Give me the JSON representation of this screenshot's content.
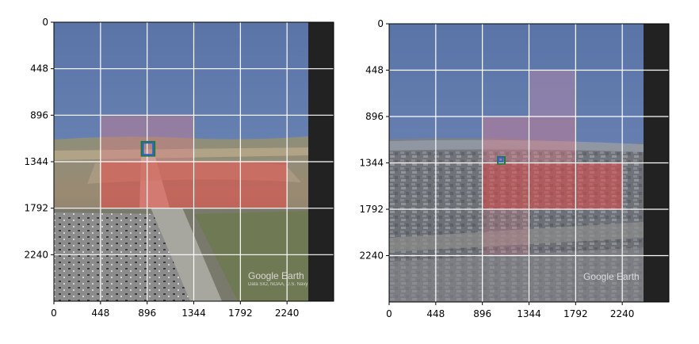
{
  "chart_data": [
    {
      "type": "heatmap",
      "image": "aerial-airport-runway",
      "xlim": [
        0,
        2688
      ],
      "ylim": [
        2688,
        0
      ],
      "xticks": [
        0,
        448,
        896,
        1344,
        1792,
        2240
      ],
      "yticks": [
        0,
        448,
        896,
        1344,
        1792,
        2240
      ],
      "tick_labels_x": [
        "0",
        "448",
        "896",
        "1344",
        "1792",
        "2240"
      ],
      "tick_labels_y": [
        "0",
        "448",
        "896",
        "1344",
        "1792",
        "2240"
      ],
      "grid": true,
      "highlight_cells": [
        {
          "x0": 448,
          "y0": 896,
          "x1": 1344,
          "y1": 1344,
          "color": "#e07b8a",
          "alpha": 0.38
        },
        {
          "x0": 448,
          "y0": 1344,
          "x1": 1344,
          "y1": 1792,
          "color": "#e24a4a",
          "alpha": 0.55
        },
        {
          "x0": 1344,
          "y0": 1344,
          "x1": 2240,
          "y1": 1792,
          "color": "#e24a4a",
          "alpha": 0.55
        }
      ],
      "boxes": [
        {
          "x0": 842,
          "y0": 1152,
          "x1": 968,
          "y1": 1287,
          "color": "#1f7a3a"
        },
        {
          "x0": 857,
          "y0": 1162,
          "x1": 953,
          "y1": 1277,
          "color": "#2a63c9"
        }
      ],
      "watermark": {
        "title": "Google Earth",
        "sub": "Data SIO, NOAA, U.S. Navy"
      }
    },
    {
      "type": "heatmap",
      "image": "aerial-city",
      "xlim": [
        0,
        2688
      ],
      "ylim": [
        2688,
        0
      ],
      "xticks": [
        0,
        448,
        896,
        1344,
        1792,
        2240
      ],
      "yticks": [
        0,
        448,
        896,
        1344,
        1792,
        2240
      ],
      "tick_labels_x": [
        "0",
        "448",
        "896",
        "1344",
        "1792",
        "2240"
      ],
      "tick_labels_y": [
        "0",
        "448",
        "896",
        "1344",
        "1792",
        "2240"
      ],
      "grid": true,
      "highlight_cells": [
        {
          "x0": 1344,
          "y0": 448,
          "x1": 1792,
          "y1": 896,
          "color": "#c98aa8",
          "alpha": 0.4
        },
        {
          "x0": 896,
          "y0": 896,
          "x1": 1792,
          "y1": 1344,
          "color": "#e07b8a",
          "alpha": 0.4
        },
        {
          "x0": 896,
          "y0": 1344,
          "x1": 2240,
          "y1": 1792,
          "color": "#e24a4a",
          "alpha": 0.55
        },
        {
          "x0": 896,
          "y0": 1792,
          "x1": 1344,
          "y1": 2240,
          "color": "#e07b8a",
          "alpha": 0.25
        }
      ],
      "boxes": [
        {
          "x0": 1044,
          "y0": 1286,
          "x1": 1112,
          "y1": 1353,
          "color": "#1f7a3a"
        },
        {
          "x0": 1050,
          "y0": 1292,
          "x1": 1092,
          "y1": 1330,
          "color": "#2a63c9"
        }
      ],
      "watermark": {
        "title": "Google Earth",
        "sub": ""
      }
    }
  ]
}
